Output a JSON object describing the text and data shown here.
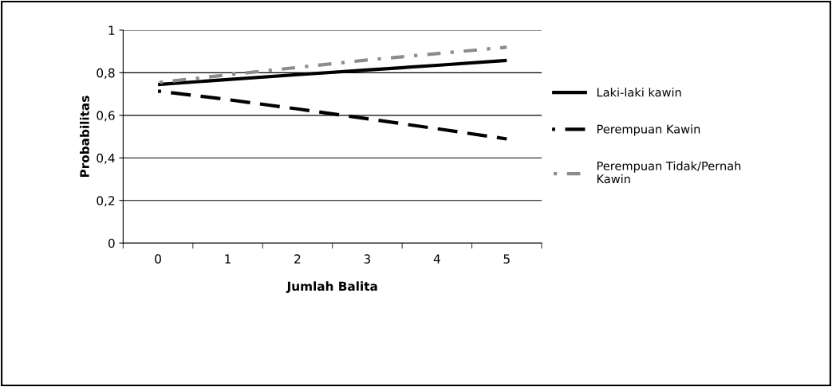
{
  "chart_data": {
    "type": "line",
    "xlabel": "Jumlah Balita",
    "ylabel": "Probabilitas",
    "categories": [
      "0",
      "1",
      "2",
      "3",
      "4",
      "5"
    ],
    "series": [
      {
        "name": "Laki-laki kawin",
        "color": "#000000",
        "line_style": "solid",
        "values": [
          0.745,
          0.768,
          0.791,
          0.813,
          0.835,
          0.858
        ]
      },
      {
        "name": "Perempuan Kawin",
        "color": "#000000",
        "line_style": "dashed",
        "values": [
          0.714,
          0.674,
          0.63,
          0.584,
          0.537,
          0.489
        ]
      },
      {
        "name": "Perempuan Tidak/Pernah Kawin",
        "color": "#8c8c8c",
        "line_style": "dashdot",
        "values": [
          0.754,
          0.79,
          0.825,
          0.86,
          0.89,
          0.92
        ]
      }
    ],
    "ylim": [
      0,
      1
    ],
    "yticks": [
      0,
      {
        "value": 0.2,
        "label": "0,2"
      },
      {
        "value": 0.4,
        "label": "0,4"
      },
      {
        "value": 0.6,
        "label": "0,6"
      },
      {
        "value": 0.8,
        "label": "0,8"
      },
      1
    ],
    "grid": "y",
    "legend": "right",
    "marker": "none"
  }
}
